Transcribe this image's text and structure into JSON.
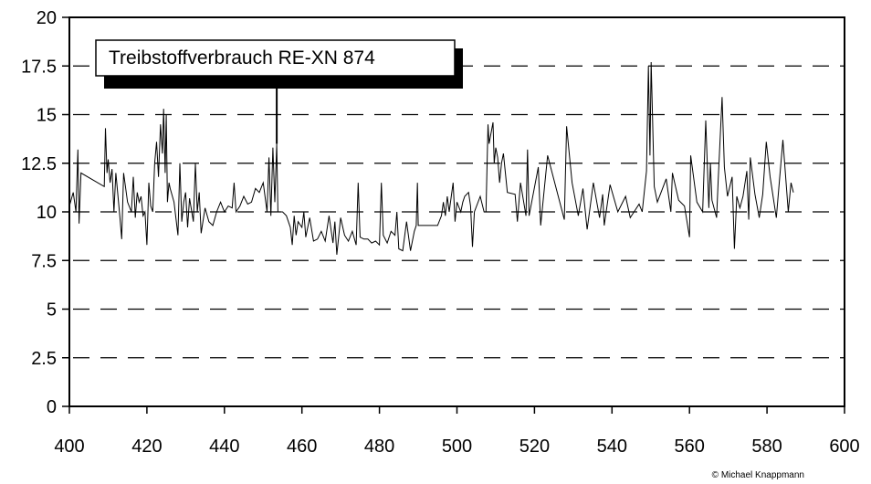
{
  "chart_data": {
    "type": "line",
    "title": "Treibstoffverbrauch RE-XN 874",
    "xlabel": "",
    "ylabel": "",
    "xlim": [
      400,
      600
    ],
    "ylim": [
      0,
      20
    ],
    "x_ticks": [
      "400",
      "420",
      "440",
      "460",
      "480",
      "500",
      "520",
      "540",
      "560",
      "580",
      "600"
    ],
    "y_ticks": [
      "0",
      "2.5",
      "5",
      "7.5",
      "10",
      "12.5",
      "15",
      "17.5",
      "20"
    ],
    "grid": "horizontal dashed",
    "title_pointer_x": 453.5,
    "line_color": "#000000",
    "series": [
      {
        "name": "Treibstoffverbrauch RE-XN 874",
        "points": [
          [
            400,
            10.3
          ],
          [
            401,
            11
          ],
          [
            401.7,
            10
          ],
          [
            402.2,
            13.2
          ],
          [
            402.5,
            9.4
          ],
          [
            403,
            12
          ],
          [
            409,
            11.3
          ],
          [
            409.3,
            14.3
          ],
          [
            409.7,
            12
          ],
          [
            410,
            12.7
          ],
          [
            410.5,
            11.5
          ],
          [
            411,
            12.2
          ],
          [
            411.5,
            10
          ],
          [
            412,
            12
          ],
          [
            413,
            9.8
          ],
          [
            413.5,
            8.6
          ],
          [
            414,
            12
          ],
          [
            415,
            10.5
          ],
          [
            416,
            10
          ],
          [
            416.5,
            11.8
          ],
          [
            417,
            9.7
          ],
          [
            417.5,
            11
          ],
          [
            418,
            10.5
          ],
          [
            418.5,
            10.8
          ],
          [
            419,
            9.8
          ],
          [
            419.5,
            10
          ],
          [
            420,
            8.3
          ],
          [
            420.5,
            11.5
          ],
          [
            421,
            10.3
          ],
          [
            421.5,
            10
          ],
          [
            422,
            12.5
          ],
          [
            422.5,
            13.6
          ],
          [
            423,
            11.8
          ],
          [
            423.5,
            14.5
          ],
          [
            424,
            13
          ],
          [
            424.3,
            15.3
          ],
          [
            424.7,
            12
          ],
          [
            425,
            15
          ],
          [
            425.3,
            10.5
          ],
          [
            425.7,
            11.5
          ],
          [
            426,
            11.2
          ],
          [
            427,
            10.5
          ],
          [
            428,
            8.8
          ],
          [
            428.5,
            12.5
          ],
          [
            429,
            9.5
          ],
          [
            429.5,
            10.5
          ],
          [
            430,
            11
          ],
          [
            430.5,
            9.2
          ],
          [
            431,
            10.7
          ],
          [
            432,
            9.5
          ],
          [
            432.5,
            12.5
          ],
          [
            433,
            10
          ],
          [
            433.5,
            11
          ],
          [
            434,
            8.9
          ],
          [
            435,
            10.2
          ],
          [
            436,
            9.5
          ],
          [
            437,
            9.3
          ],
          [
            438,
            10
          ],
          [
            439,
            10.5
          ],
          [
            440,
            10
          ],
          [
            441,
            10.3
          ],
          [
            442,
            10.2
          ],
          [
            442.5,
            11.5
          ],
          [
            443,
            10
          ],
          [
            444,
            10.3
          ],
          [
            445,
            10.8
          ],
          [
            446,
            10.4
          ],
          [
            447,
            10.5
          ],
          [
            448,
            11.2
          ],
          [
            449,
            11
          ],
          [
            450,
            11.5
          ],
          [
            451,
            10
          ],
          [
            451.5,
            12.8
          ],
          [
            452,
            9.8
          ],
          [
            452.5,
            13.3
          ],
          [
            453,
            10.5
          ],
          [
            453.5,
            13.5
          ],
          [
            453.8,
            10
          ],
          [
            455,
            10
          ],
          [
            456,
            9.8
          ],
          [
            457,
            9.2
          ],
          [
            457.5,
            8.3
          ],
          [
            458,
            9.8
          ],
          [
            458.5,
            8.8
          ],
          [
            459,
            9.5
          ],
          [
            460,
            9.2
          ],
          [
            460.5,
            10
          ],
          [
            461,
            8.7
          ],
          [
            462,
            9.7
          ],
          [
            463,
            8.5
          ],
          [
            464,
            8.6
          ],
          [
            465,
            9
          ],
          [
            466,
            8.5
          ],
          [
            467,
            9.8
          ],
          [
            468,
            8.4
          ],
          [
            468.5,
            9.5
          ],
          [
            469,
            7.8
          ],
          [
            470,
            9.7
          ],
          [
            471,
            8.8
          ],
          [
            472,
            8.5
          ],
          [
            473,
            9
          ],
          [
            474,
            8.3
          ],
          [
            474.5,
            11.5
          ],
          [
            475,
            8.7
          ],
          [
            476,
            8.6
          ],
          [
            477,
            8.6
          ],
          [
            478,
            8.4
          ],
          [
            479,
            8.5
          ],
          [
            480,
            8.3
          ],
          [
            480.5,
            11.5
          ],
          [
            481,
            8.8
          ],
          [
            482,
            8.4
          ],
          [
            483,
            9
          ],
          [
            484,
            8.8
          ],
          [
            484.5,
            10
          ],
          [
            485,
            8.1
          ],
          [
            486,
            8
          ],
          [
            487,
            9.5
          ],
          [
            488,
            8
          ],
          [
            489,
            9
          ],
          [
            489.5,
            9.3
          ],
          [
            489.8,
            11.5
          ],
          [
            490,
            9.3
          ],
          [
            495,
            9.3
          ],
          [
            496,
            9.8
          ],
          [
            496.5,
            10.5
          ],
          [
            497,
            9.8
          ],
          [
            497.5,
            10.8
          ],
          [
            498,
            10
          ],
          [
            499,
            11.5
          ],
          [
            499.5,
            9.5
          ],
          [
            500,
            10.5
          ],
          [
            501,
            10
          ],
          [
            501.5,
            10.5
          ],
          [
            502,
            10.8
          ],
          [
            503,
            11
          ],
          [
            503.5,
            10.3
          ],
          [
            504,
            8.2
          ],
          [
            504.5,
            10
          ],
          [
            506,
            10.8
          ],
          [
            507,
            10
          ],
          [
            507.5,
            10
          ],
          [
            508,
            14.5
          ],
          [
            508.3,
            13.5
          ],
          [
            509.3,
            14.6
          ],
          [
            509.6,
            12.5
          ],
          [
            510,
            13.3
          ],
          [
            510.5,
            12.8
          ],
          [
            511,
            11.5
          ],
          [
            511.5,
            12.5
          ],
          [
            512,
            13
          ],
          [
            513,
            11
          ],
          [
            515,
            10.9
          ],
          [
            515.6,
            9.5
          ],
          [
            516.4,
            11.5
          ],
          [
            517.8,
            9.8
          ],
          [
            518.2,
            13.2
          ],
          [
            518.6,
            9.8
          ],
          [
            521,
            12.3
          ],
          [
            521.6,
            9.3
          ],
          [
            523.4,
            12.9
          ],
          [
            527.7,
            9.6
          ],
          [
            528.3,
            14.4
          ],
          [
            529.7,
            11.5
          ],
          [
            531.3,
            9.8
          ],
          [
            532.5,
            11.2
          ],
          [
            533.6,
            9.1
          ],
          [
            535.2,
            11.5
          ],
          [
            536.8,
            9.7
          ],
          [
            537.6,
            10.9
          ],
          [
            538,
            9.3
          ],
          [
            539.5,
            11.4
          ],
          [
            541.5,
            10
          ],
          [
            543.5,
            10.8
          ],
          [
            544.7,
            9.7
          ],
          [
            547,
            10.4
          ],
          [
            547.8,
            10
          ],
          [
            548.9,
            12.1
          ],
          [
            549.4,
            17.5
          ],
          [
            549.8,
            12.9
          ],
          [
            550.1,
            17.7
          ],
          [
            550.9,
            11.3
          ],
          [
            551.7,
            10.5
          ],
          [
            554,
            11.7
          ],
          [
            555.2,
            10
          ],
          [
            555.6,
            12
          ],
          [
            557.2,
            10.6
          ],
          [
            558.7,
            10.3
          ],
          [
            560,
            8.7
          ],
          [
            560.3,
            12.9
          ],
          [
            561.9,
            10.5
          ],
          [
            563.4,
            10
          ],
          [
            564.2,
            14.7
          ],
          [
            565,
            10.2
          ],
          [
            565.4,
            12.5
          ],
          [
            565.8,
            10.6
          ],
          [
            567,
            9.7
          ],
          [
            567.4,
            11.6
          ],
          [
            568.4,
            15.9
          ],
          [
            569,
            12.3
          ],
          [
            569.8,
            10.8
          ],
          [
            571,
            11.8
          ],
          [
            571.6,
            8.1
          ],
          [
            572.2,
            10.8
          ],
          [
            573,
            10.2
          ],
          [
            573.8,
            10.8
          ],
          [
            574.8,
            12.1
          ],
          [
            575.3,
            9.6
          ],
          [
            575.7,
            12.8
          ],
          [
            576.9,
            10.9
          ],
          [
            578,
            9.7
          ],
          [
            578.9,
            10.9
          ],
          [
            579.8,
            13.6
          ],
          [
            580.8,
            11.8
          ],
          [
            582.4,
            9.7
          ],
          [
            583.2,
            11.6
          ],
          [
            584.1,
            13.7
          ],
          [
            585.5,
            10
          ],
          [
            586.2,
            11.5
          ],
          [
            586.8,
            11
          ]
        ]
      }
    ]
  },
  "footer": {
    "copyright": "© Michael Knappmann"
  }
}
